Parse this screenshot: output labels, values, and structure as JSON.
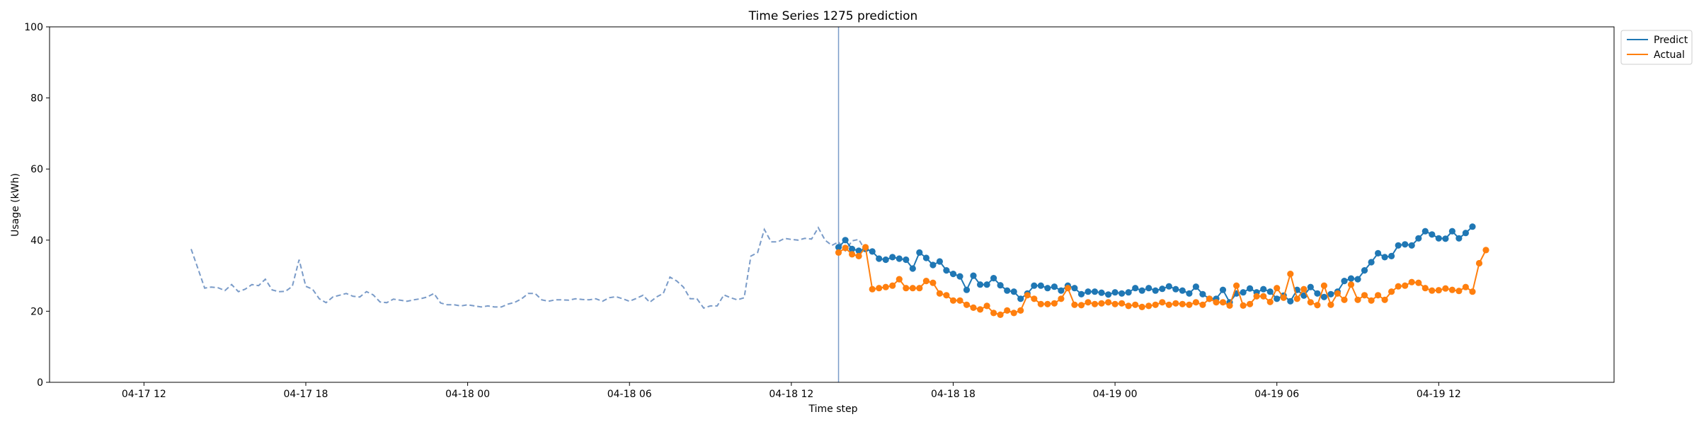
{
  "chart_data": {
    "type": "line",
    "title": "Time Series 1275 prediction",
    "xlabel": "Time step",
    "ylabel": "Usage (kWh)",
    "ylim": [
      0,
      100
    ],
    "yticks": [
      0,
      20,
      40,
      60,
      80,
      100
    ],
    "x_unit": "hours since 04-17 12:00",
    "xlim": [
      -3.5,
      54.5
    ],
    "xticks": [
      {
        "value": 0,
        "label": "04-17 12"
      },
      {
        "value": 6,
        "label": "04-17 18"
      },
      {
        "value": 12,
        "label": "04-18 00"
      },
      {
        "value": 18,
        "label": "04-18 06"
      },
      {
        "value": 24,
        "label": "04-18 12"
      },
      {
        "value": 30,
        "label": "04-18 18"
      },
      {
        "value": 36,
        "label": "04-19 00"
      },
      {
        "value": 42,
        "label": "04-19 06"
      },
      {
        "value": 48,
        "label": "04-19 12"
      }
    ],
    "forecast_start": 25.75,
    "step_hours": 0.25,
    "colors": {
      "predict": "#1f77b4",
      "actual": "#ff7f0e",
      "history": "#7a9bc8",
      "divider": "#7a9bc8"
    },
    "legend_position": "outside-top-right",
    "history": {
      "start": 1.75,
      "values": [
        37.5,
        32,
        26.5,
        26.8,
        26.6,
        25.8,
        27.5,
        25.5,
        26.2,
        27.5,
        27.2,
        29,
        26,
        25.5,
        25.6,
        27,
        34.5,
        27,
        26.2,
        23.5,
        22.4,
        24,
        24.5,
        25,
        24.2,
        24,
        25.5,
        24.6,
        22.6,
        22.4,
        23.4,
        23.1,
        22.8,
        23.2,
        23.5,
        24,
        25,
        22.3,
        21.8,
        21.8,
        21.5,
        21.8,
        21.5,
        21.2,
        21.5,
        21.2,
        21.2,
        22,
        22.5,
        23.5,
        25,
        25,
        23.2,
        22.8,
        23.2,
        23.2,
        23.1,
        23.5,
        23.3,
        23.2,
        23.5,
        22.8,
        23.8,
        24.1,
        23.5,
        22.8,
        23.6,
        24.5,
        22.5,
        24,
        25,
        29.6,
        28.5,
        26.8,
        23.5,
        23.5,
        20.9,
        21.5,
        21.5,
        24.6,
        23.8,
        23.2,
        23.8,
        35.5,
        36.5,
        43,
        39.5,
        39.5,
        40.5,
        40.2,
        40,
        40.5,
        40.3,
        43.5,
        40,
        38.5,
        39.5,
        37,
        39.8,
        40.2,
        37
      ]
    },
    "series": [
      {
        "name": "Predict",
        "values": [
          38,
          40,
          37.5,
          37,
          37.5,
          36.8,
          34.8,
          34.5,
          35.2,
          34.8,
          34.5,
          32,
          36.5,
          35,
          33,
          34,
          31.5,
          30.5,
          29.8,
          26,
          30,
          27.5,
          27.5,
          29.3,
          27.3,
          25.8,
          25.5,
          23.5,
          25,
          27.2,
          27.2,
          26.5,
          26.9,
          25.8,
          27.2,
          26.5,
          24.8,
          25.5,
          25.5,
          25.2,
          24.7,
          25.3,
          25,
          25.3,
          26.5,
          25.8,
          26.5,
          25.8,
          26.3,
          27,
          26.2,
          25.8,
          25,
          26.9,
          24.8,
          23.5,
          23.5,
          26,
          22.5,
          25,
          25.3,
          26.4,
          25.3,
          26.2,
          25.5,
          23.5,
          24.4,
          22.8,
          26,
          24.4,
          26.8,
          25,
          24,
          24.8,
          25.5,
          28.5,
          29.2,
          29,
          31.5,
          33.8,
          36.3,
          35.2,
          35.5,
          38.5,
          38.8,
          38.5,
          40.5,
          42.5,
          41.6,
          40.5,
          40.4,
          42.5,
          40.5,
          42,
          43.8
        ]
      },
      {
        "name": "Actual",
        "values": [
          36.5,
          37.8,
          36,
          35.5,
          38,
          26.2,
          26.5,
          26.8,
          27.2,
          29,
          26.5,
          26.5,
          26.5,
          28.5,
          28,
          25,
          24.5,
          23,
          23,
          21.8,
          21,
          20.5,
          21.5,
          19.5,
          19,
          20.2,
          19.5,
          20.2,
          24.5,
          23.5,
          22,
          22,
          22.2,
          23.5,
          26.5,
          21.8,
          21.7,
          22.5,
          22,
          22.2,
          22.5,
          22,
          22.2,
          21.5,
          21.8,
          21.2,
          21.5,
          21.8,
          22.5,
          21.8,
          22.2,
          22,
          21.8,
          22.5,
          21.8,
          23.5,
          22.5,
          22.5,
          21.6,
          27.2,
          21.6,
          22,
          24.2,
          24.2,
          22.6,
          26.5,
          23.8,
          30.5,
          23.5,
          26.2,
          22.5,
          21.7,
          27.2,
          21.8,
          25,
          23.2,
          27.5,
          23.2,
          24.5,
          23,
          24.5,
          23.2,
          25.5,
          27,
          27.2,
          28.2,
          28,
          26.5,
          25.8,
          25.9,
          26.4,
          26,
          25.7,
          26.8,
          25.5,
          33.5,
          37.2
        ]
      }
    ]
  }
}
